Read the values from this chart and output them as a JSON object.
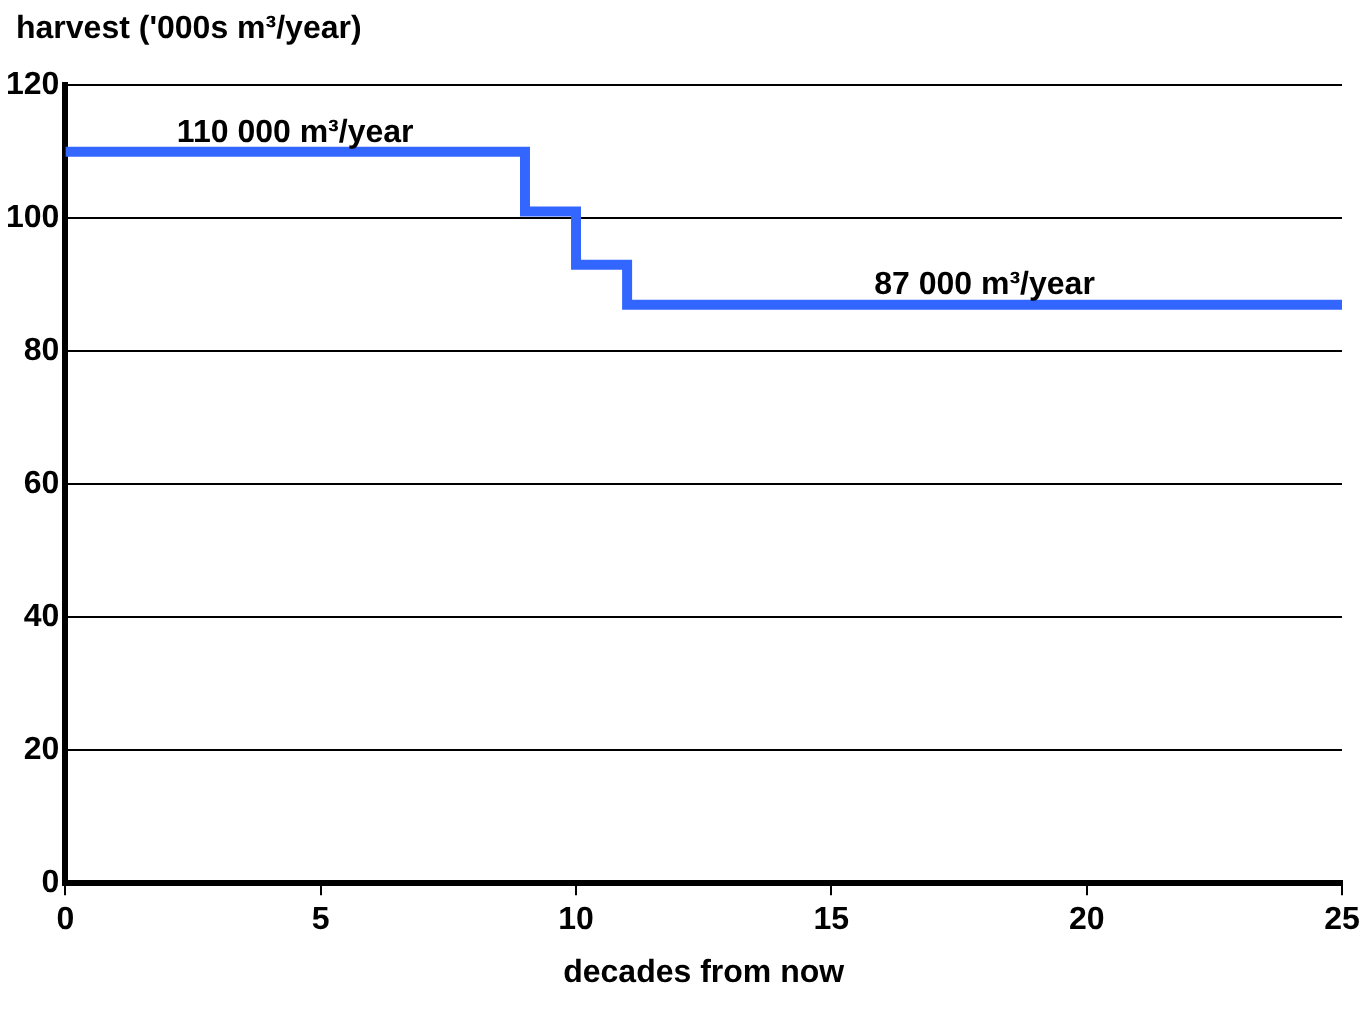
{
  "chart_data": {
    "type": "step",
    "ylabel": "harvest ('000s m³/year)",
    "xlabel": "decades from now",
    "x": [
      0,
      9,
      10,
      11,
      25
    ],
    "series": [
      {
        "color": "#3366ff",
        "values": [
          110,
          101,
          93,
          87,
          87
        ]
      }
    ],
    "xlim": [
      0,
      25
    ],
    "xticks": [
      0,
      5,
      10,
      15,
      20,
      25
    ],
    "ylim": [
      0,
      120
    ],
    "yticks": [
      0,
      20,
      40,
      60,
      80,
      100,
      120
    ],
    "grid": "y",
    "legend": false,
    "marker": "none",
    "line_style": "solid",
    "annotations": [
      "110 000 m³/year",
      "87 000 m³/year"
    ]
  }
}
